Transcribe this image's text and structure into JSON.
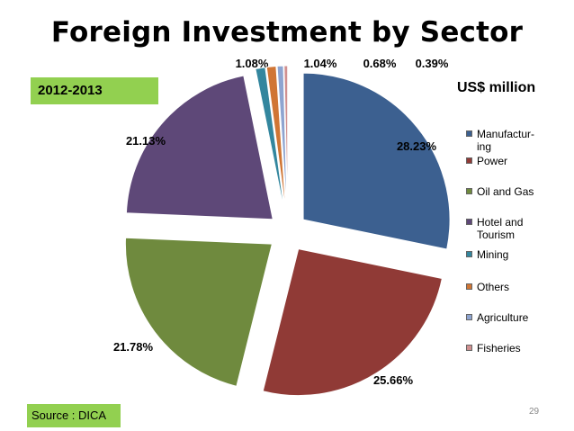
{
  "slide": {
    "title": "Foreign Investment by Sector",
    "period": "2012-2013",
    "unit": "US$ million",
    "source": "Source : DICA",
    "page_number": "29"
  },
  "chart_data": {
    "type": "pie",
    "title": "Foreign Investment by Sector",
    "unit": "US$ million",
    "legend_position": "right",
    "categories": [
      "Manufactur-\ning",
      "Power",
      "Oil and Gas",
      "Hotel and\nTourism",
      "Mining",
      "Others",
      "Agriculture",
      "Fisheries"
    ],
    "values": [
      28.23,
      25.66,
      21.78,
      21.13,
      1.08,
      1.04,
      0.68,
      0.39
    ],
    "labels": [
      "28.23%",
      "25.66%",
      "21.78%",
      "21.13%",
      "1.08%",
      "1.04%",
      "0.68%",
      "0.39%"
    ],
    "colors": [
      "#3c6090",
      "#903a36",
      "#6f8a3e",
      "#5e4878",
      "#33869e",
      "#d07534",
      "#8ea4d0",
      "#d09090"
    ]
  }
}
